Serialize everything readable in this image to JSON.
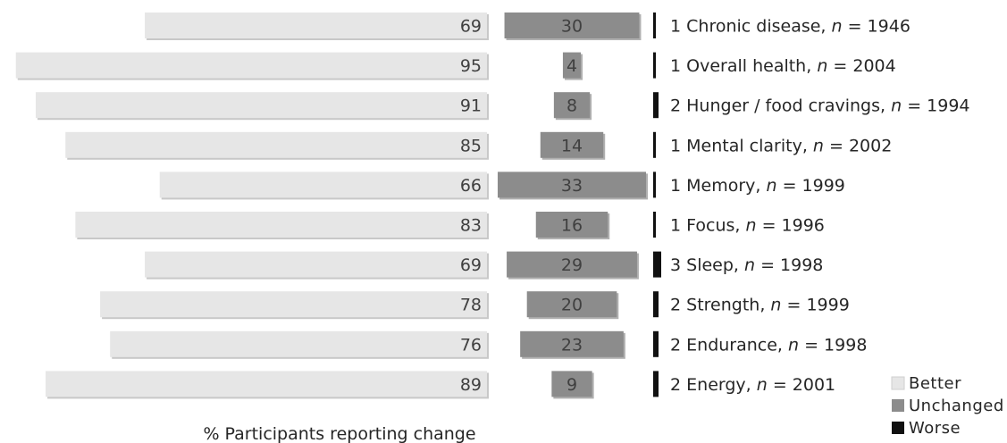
{
  "chart_data": {
    "type": "bar",
    "orientation": "horizontal",
    "layout": "diverging-split",
    "xlabel": "% Participants reporting change",
    "categories": [
      {
        "name": "Chronic disease",
        "n": "1946"
      },
      {
        "name": "Overall health",
        "n": "2004"
      },
      {
        "name": "Hunger / food cravings",
        "n": "1994"
      },
      {
        "name": "Mental clarity",
        "n": "2002"
      },
      {
        "name": "Memory",
        "n": "1999"
      },
      {
        "name": "Focus",
        "n": "1996"
      },
      {
        "name": "Sleep",
        "n": "1998"
      },
      {
        "name": "Strength",
        "n": "1999"
      },
      {
        "name": "Endurance",
        "n": "1998"
      },
      {
        "name": "Energy",
        "n": "2001"
      }
    ],
    "n_label": "n",
    "n_sep": " = ",
    "series": [
      {
        "name": "Better",
        "color": "#e6e6e6",
        "values": [
          69,
          95,
          91,
          85,
          66,
          83,
          69,
          78,
          76,
          89
        ]
      },
      {
        "name": "Unchanged",
        "color": "#8c8c8c",
        "values": [
          30,
          4,
          8,
          14,
          33,
          16,
          29,
          20,
          23,
          9
        ]
      },
      {
        "name": "Worse",
        "color": "#111111",
        "values": [
          1,
          1,
          2,
          1,
          1,
          1,
          3,
          2,
          2,
          2
        ]
      }
    ],
    "legend": {
      "position": "bottom-right",
      "entries": [
        "Better",
        "Unchanged",
        "Worse"
      ]
    },
    "grid": false
  }
}
